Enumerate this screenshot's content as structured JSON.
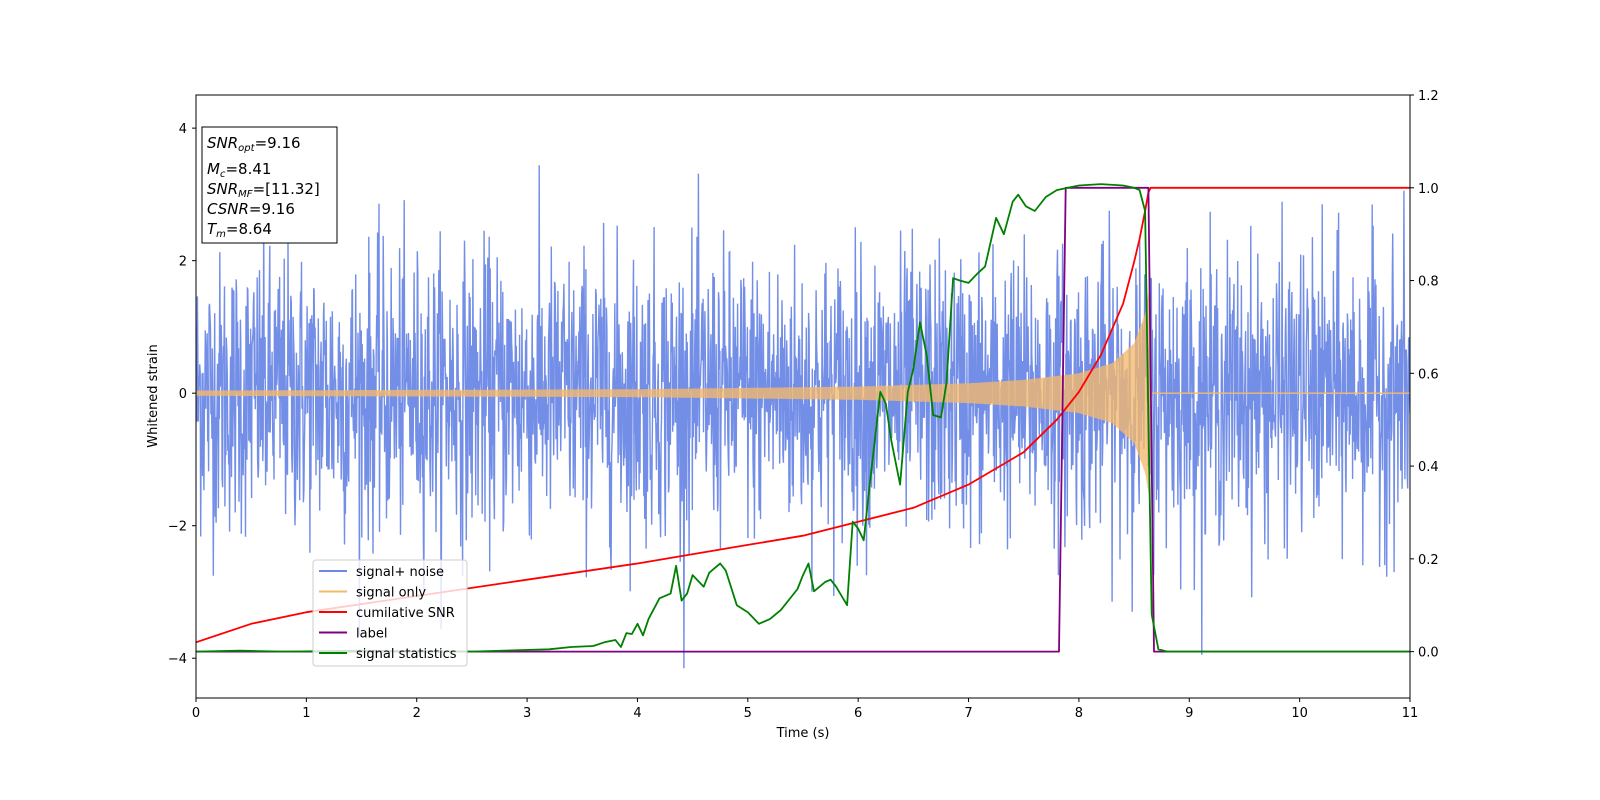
{
  "chart_data": {
    "type": "line",
    "xlabel": "Time (s)",
    "ylabel": "Whitened strain",
    "xlim": [
      0,
      11
    ],
    "ylim": [
      -4.6,
      4.5
    ],
    "y2lim": [
      -0.1,
      1.2
    ],
    "xticks": [
      "0",
      "1",
      "2",
      "3",
      "4",
      "5",
      "6",
      "7",
      "8",
      "9",
      "10",
      "11"
    ],
    "yticks": [
      "−4",
      "−2",
      "0",
      "2",
      "4"
    ],
    "y2ticks": [
      "0.0",
      "0.2",
      "0.4",
      "0.6",
      "0.8",
      "1.0",
      "1.2"
    ],
    "grid": false,
    "legend_position": "lower-left",
    "series": [
      {
        "name": "signal+ noise",
        "axis": "left",
        "color": "#6b88e6",
        "description_only": true,
        "noise_sigma": 1.05,
        "noise_peak_max": 4.1,
        "noise_peak_min": -4.15
      },
      {
        "name": "signal only",
        "axis": "left",
        "color": "#f5b96a",
        "merger_time": 8.64,
        "amplitude_points": [
          [
            0,
            0.04
          ],
          [
            2,
            0.05
          ],
          [
            4,
            0.06
          ],
          [
            6,
            0.1
          ],
          [
            7,
            0.15
          ],
          [
            7.5,
            0.2
          ],
          [
            8,
            0.3
          ],
          [
            8.3,
            0.45
          ],
          [
            8.5,
            0.75
          ],
          [
            8.6,
            1.2
          ],
          [
            8.64,
            1.6
          ],
          [
            8.66,
            0
          ],
          [
            11,
            0
          ]
        ]
      },
      {
        "name": "cumilative SNR",
        "axis": "right",
        "color": "#ff0000",
        "x": [
          0,
          0.5,
          1,
          2,
          3,
          4,
          5,
          5.5,
          6,
          6.5,
          7,
          7.5,
          7.8,
          8,
          8.2,
          8.4,
          8.5,
          8.55,
          8.6,
          8.63,
          8.65,
          9,
          11
        ],
        "y": [
          0.02,
          0.06,
          0.085,
          0.12,
          0.155,
          0.19,
          0.23,
          0.25,
          0.28,
          0.31,
          0.36,
          0.43,
          0.5,
          0.56,
          0.64,
          0.75,
          0.84,
          0.89,
          0.95,
          0.99,
          1.0,
          1.0,
          1.0
        ]
      },
      {
        "name": "label",
        "axis": "right",
        "color": "#800080",
        "x": [
          0,
          7.82,
          7.88,
          8.63,
          8.68,
          11
        ],
        "y": [
          0,
          0,
          1.0,
          1.0,
          0,
          0
        ]
      },
      {
        "name": "signal statistics",
        "axis": "right",
        "color": "#008000",
        "x": [
          0,
          0.4,
          0.8,
          1.5,
          2.5,
          3.2,
          3.4,
          3.6,
          3.7,
          3.8,
          3.85,
          3.9,
          3.95,
          4.0,
          4.05,
          4.1,
          4.2,
          4.3,
          4.35,
          4.4,
          4.45,
          4.5,
          4.6,
          4.65,
          4.7,
          4.75,
          4.8,
          4.9,
          5.0,
          5.1,
          5.2,
          5.3,
          5.4,
          5.45,
          5.5,
          5.55,
          5.6,
          5.65,
          5.7,
          5.75,
          5.8,
          5.9,
          5.95,
          6.0,
          6.05,
          6.1,
          6.2,
          6.25,
          6.3,
          6.38,
          6.45,
          6.5,
          6.56,
          6.62,
          6.68,
          6.75,
          6.8,
          6.86,
          6.92,
          7.0,
          7.08,
          7.15,
          7.25,
          7.32,
          7.4,
          7.45,
          7.52,
          7.6,
          7.7,
          7.8,
          7.9,
          8.0,
          8.2,
          8.4,
          8.5,
          8.55,
          8.6,
          8.63,
          8.66,
          8.72,
          8.8,
          9.0,
          11
        ],
        "y": [
          0,
          0.002,
          0.0,
          0.002,
          0.0,
          0.005,
          0.01,
          0.012,
          0.02,
          0.025,
          0.01,
          0.04,
          0.038,
          0.06,
          0.035,
          0.07,
          0.115,
          0.125,
          0.185,
          0.11,
          0.125,
          0.165,
          0.14,
          0.17,
          0.18,
          0.19,
          0.175,
          0.1,
          0.085,
          0.06,
          0.07,
          0.09,
          0.12,
          0.135,
          0.165,
          0.19,
          0.13,
          0.14,
          0.15,
          0.155,
          0.14,
          0.1,
          0.28,
          0.265,
          0.24,
          0.35,
          0.56,
          0.535,
          0.455,
          0.36,
          0.56,
          0.61,
          0.71,
          0.64,
          0.51,
          0.505,
          0.58,
          0.805,
          0.8,
          0.795,
          0.815,
          0.83,
          0.935,
          0.9,
          0.97,
          0.985,
          0.96,
          0.95,
          0.98,
          0.995,
          1.0,
          1.005,
          1.008,
          1.005,
          1.0,
          0.995,
          0.95,
          0.5,
          0.08,
          0.005,
          0.0,
          0.0,
          0.0
        ]
      }
    ]
  },
  "stats_box": {
    "snr_opt_base": "SNR",
    "snr_opt_sub": "opt",
    "snr_opt_value": "=9.16",
    "mc_base": "M",
    "mc_sub": "c",
    "mc_value": "=8.41",
    "snr_mf_base": "SNR",
    "snr_mf_sub": "MF",
    "snr_mf_value": "=[11.32]",
    "csnr_label": "CSNR",
    "csnr_value": "=9.16",
    "tm_base": "T",
    "tm_sub": "m",
    "tm_value": "=8.64"
  }
}
